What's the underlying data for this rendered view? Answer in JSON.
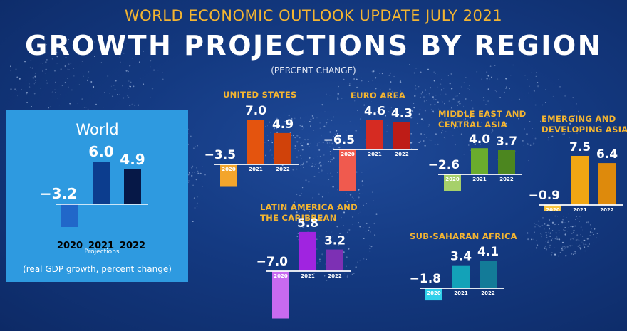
{
  "header": {
    "subtitle": "WORLD ECONOMIC OUTLOOK UPDATE JULY 2021",
    "title": "GROWTH PROJECTIONS BY REGION",
    "unit": "(PERCENT CHANGE)"
  },
  "world": {
    "title": "World",
    "projections_label": "Projections",
    "note": "(real GDP growth, percent change)"
  },
  "regions": [
    {
      "key": "us",
      "label": [
        "UNITED STATES"
      ]
    },
    {
      "key": "euro",
      "label": [
        "EURO AREA"
      ]
    },
    {
      "key": "mecas",
      "label": [
        "MIDDLE EAST AND",
        "CENTRAL ASIA"
      ]
    },
    {
      "key": "emda",
      "label": [
        "EMERGING AND",
        "DEVELOPING ASIA"
      ]
    },
    {
      "key": "latam",
      "label": [
        "LATIN AMERICA AND",
        "THE CARIBBEAN"
      ]
    },
    {
      "key": "ssa",
      "label": [
        "SUB-SAHARAN AFRICA"
      ]
    }
  ],
  "colors": {
    "background": "#143a82",
    "accent": "#f4b531",
    "world_panel": "#2e9ae0"
  },
  "chart_data": [
    {
      "type": "bar",
      "name": "World",
      "categories": [
        "2020",
        "2021",
        "2022"
      ],
      "values": [
        -3.2,
        6.0,
        4.9
      ],
      "colors": [
        "#2167c9",
        "#0c3d8e",
        "#061847"
      ]
    },
    {
      "type": "bar",
      "name": "United States",
      "categories": [
        "2020",
        "2021",
        "2022"
      ],
      "values": [
        -3.5,
        7.0,
        4.9
      ],
      "colors": [
        "#f3a52c",
        "#e4540e",
        "#d0420a"
      ]
    },
    {
      "type": "bar",
      "name": "Euro Area",
      "categories": [
        "2020",
        "2021",
        "2022"
      ],
      "values": [
        -6.5,
        4.6,
        4.3
      ],
      "colors": [
        "#f05a4e",
        "#d62b22",
        "#be1c17"
      ]
    },
    {
      "type": "bar",
      "name": "Middle East and Central Asia",
      "categories": [
        "2020",
        "2021",
        "2022"
      ],
      "values": [
        -2.6,
        4.0,
        3.7
      ],
      "colors": [
        "#a6d06a",
        "#6aac2d",
        "#4c861f"
      ]
    },
    {
      "type": "bar",
      "name": "Emerging and Developing Asia",
      "categories": [
        "2020",
        "2021",
        "2022"
      ],
      "values": [
        -0.9,
        7.5,
        6.4
      ],
      "colors": [
        "#f7c43e",
        "#f0a613",
        "#de8a0c"
      ]
    },
    {
      "type": "bar",
      "name": "Latin America and the Caribbean",
      "categories": [
        "2020",
        "2021",
        "2022"
      ],
      "values": [
        -7.0,
        5.8,
        3.2
      ],
      "colors": [
        "#c86af0",
        "#a024e0",
        "#7d30b4"
      ]
    },
    {
      "type": "bar",
      "name": "Sub-Saharan Africa",
      "categories": [
        "2020",
        "2021",
        "2022"
      ],
      "values": [
        -1.8,
        3.4,
        4.1
      ],
      "colors": [
        "#2fd0ea",
        "#13a2b8",
        "#137b98"
      ]
    }
  ]
}
